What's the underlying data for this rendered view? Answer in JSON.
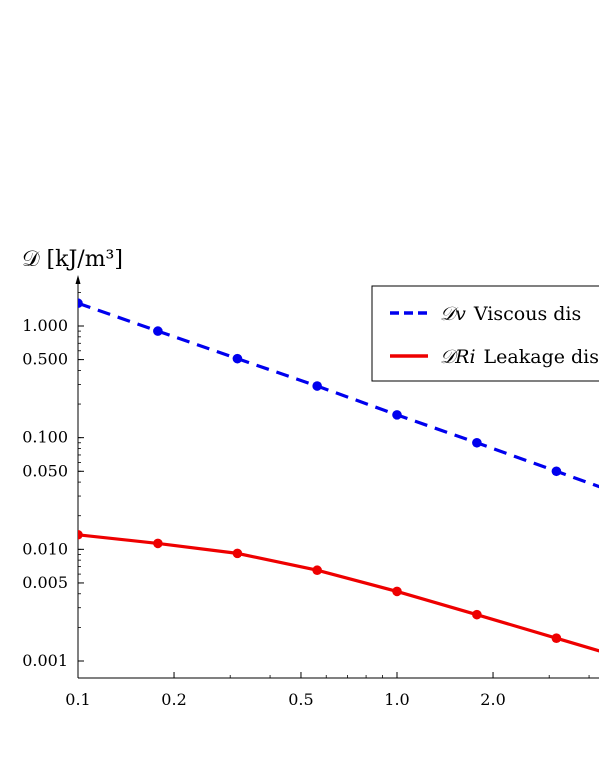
{
  "chart_data": {
    "type": "line",
    "ylabel": "𝒟 [kJ/m³]",
    "xlabel": "",
    "x_scale": "log",
    "y_scale": "log",
    "xlim": [
      0.1,
      5.0
    ],
    "ylim": [
      0.0006,
      3.0
    ],
    "x_ticks": [
      {
        "value": 0.1,
        "label": "0.1"
      },
      {
        "value": 0.2,
        "label": "0.2"
      },
      {
        "value": 0.5,
        "label": "0.5"
      },
      {
        "value": 1.0,
        "label": "1.0"
      },
      {
        "value": 2.0,
        "label": "2.0"
      }
    ],
    "y_ticks": [
      {
        "value": 1.0,
        "label": "1.000"
      },
      {
        "value": 0.5,
        "label": "0.500"
      },
      {
        "value": 0.1,
        "label": "0.100"
      },
      {
        "value": 0.05,
        "label": "0.050"
      },
      {
        "value": 0.01,
        "label": "0.010"
      },
      {
        "value": 0.005,
        "label": "0.005"
      },
      {
        "value": 0.001,
        "label": "0.001"
      }
    ],
    "grid": false,
    "legend_position": "top-right",
    "series": [
      {
        "name": "𝒟v  Viscous dis",
        "legend_symbol": "𝒟v",
        "legend_text": "Viscous dis",
        "color": "#0000ee",
        "style": "dashed",
        "x": [
          0.1,
          0.178,
          0.316,
          0.562,
          1.0,
          1.78,
          3.16
        ],
        "y": [
          1.6,
          0.9,
          0.51,
          0.29,
          0.16,
          0.09,
          0.05
        ]
      },
      {
        "name": "𝒟Ri  Leakage dis",
        "legend_symbol": "𝒟Ri",
        "legend_text": "Leakage dis",
        "color": "#ee0000",
        "style": "solid",
        "x": [
          0.1,
          0.178,
          0.316,
          0.562,
          1.0,
          1.78,
          3.16
        ],
        "y": [
          0.0135,
          0.0113,
          0.0092,
          0.0065,
          0.0042,
          0.0026,
          0.0016
        ]
      }
    ]
  }
}
